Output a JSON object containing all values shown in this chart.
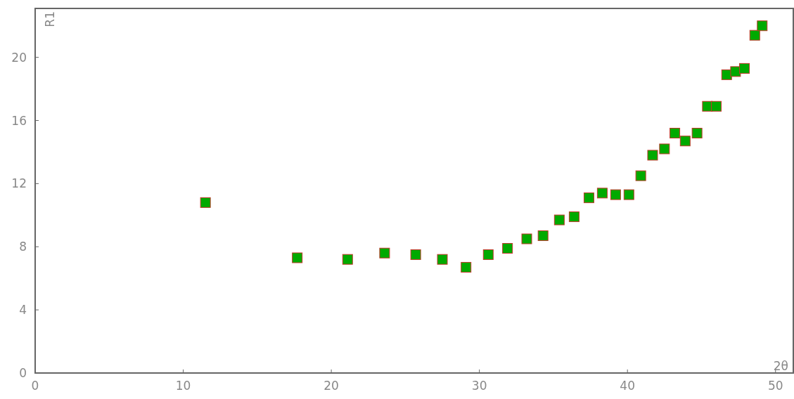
{
  "chart_data": {
    "type": "scatter",
    "xlabel": "2θ",
    "ylabel": "R1",
    "marker": "square",
    "grid": false,
    "xlim": [
      0,
      51.2
    ],
    "ylim": [
      0,
      23.1
    ],
    "xticks": [
      0,
      10,
      20,
      30,
      40,
      50
    ],
    "yticks": [
      0,
      4,
      8,
      12,
      16,
      20
    ],
    "series": [
      {
        "color": "#00aa00",
        "x": [
          11.5,
          17.7,
          21.1,
          23.6,
          25.7,
          27.5,
          29.1,
          30.6,
          31.9,
          33.2,
          34.3,
          35.4,
          36.4,
          37.4,
          38.3,
          39.2,
          40.1,
          40.9,
          41.7,
          42.5,
          43.2,
          43.9,
          44.7,
          45.4,
          46.0,
          46.7,
          47.3,
          47.9,
          48.6,
          49.1
        ],
        "values": [
          10.8,
          7.3,
          7.2,
          7.6,
          7.5,
          7.2,
          6.7,
          7.5,
          7.9,
          8.5,
          8.7,
          9.7,
          9.9,
          11.1,
          11.4,
          11.3,
          11.3,
          12.5,
          13.8,
          14.2,
          15.2,
          14.7,
          15.2,
          16.9,
          16.9,
          18.9,
          19.1,
          19.3,
          21.4,
          22.0
        ]
      }
    ]
  }
}
